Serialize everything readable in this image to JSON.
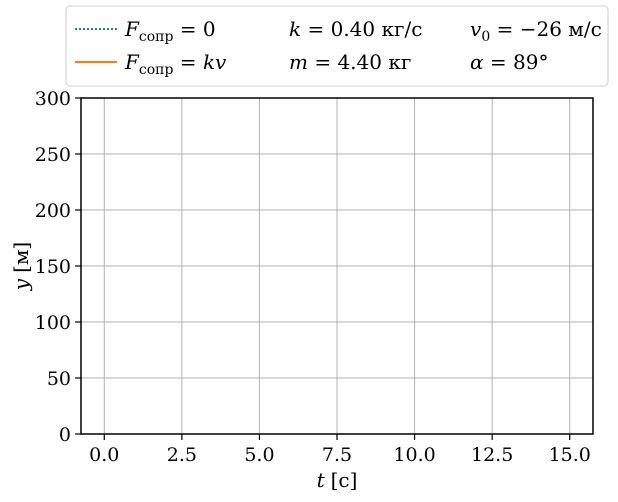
{
  "chart_data": {
    "type": "line",
    "xlabel": {
      "var": "t",
      "unit": "[с]"
    },
    "ylabel": {
      "var": "y",
      "unit": "[м]"
    },
    "xlim": [
      -0.75,
      15.75
    ],
    "ylim": [
      0,
      300
    ],
    "xticks": [
      0.0,
      2.5,
      5.0,
      7.5,
      10.0,
      12.5,
      15.0
    ],
    "xtick_labels": [
      "0.0",
      "2.5",
      "5.0",
      "7.5",
      "10.0",
      "12.5",
      "15.0"
    ],
    "yticks": [
      0,
      50,
      100,
      150,
      200,
      250,
      300
    ],
    "ytick_labels": [
      "0",
      "50",
      "100",
      "150",
      "200",
      "250",
      "300"
    ],
    "grid": true,
    "legend_placement": "top",
    "series": [
      {
        "name": "F_сопр = 0",
        "name_main": "F",
        "name_sub": "сопр",
        "name_rest": " = 0",
        "style": "dotted",
        "color": "#1f77b4",
        "x": [],
        "y": []
      },
      {
        "name": "F_сопр = kv",
        "name_main": "F",
        "name_sub": "сопр",
        "name_rest_eq": " = ",
        "name_rest_var": "kv",
        "style": "solid",
        "color": "#ff7f0e",
        "x": [],
        "y": []
      }
    ],
    "parameters": [
      {
        "var": "k",
        "value": " = 0.40 кг/с"
      },
      {
        "var": "m",
        "value": " = 4.40 кг"
      },
      {
        "var": "v",
        "sub": "0",
        "value": " = −26 м/с"
      },
      {
        "var": "α",
        "value": " = 89°"
      }
    ]
  }
}
